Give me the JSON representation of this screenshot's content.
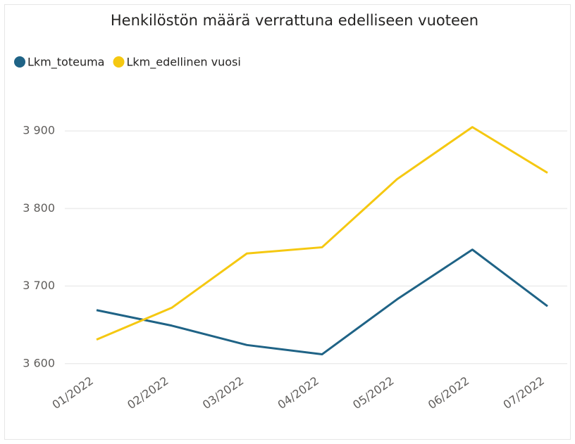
{
  "chart_data": {
    "type": "line",
    "title": "Henkilöstön määrä verrattuna edelliseen vuoteen",
    "categories": [
      "01/2022",
      "02/2022",
      "03/2022",
      "04/2022",
      "05/2022",
      "06/2022",
      "07/2022"
    ],
    "series": [
      {
        "name": "Lkm_toteuma",
        "color": "#1f6386",
        "values": [
          3669,
          3649,
          3624,
          3612,
          3683,
          3747,
          3674
        ]
      },
      {
        "name": "Lkm_edellinen vuosi",
        "color": "#f5c811",
        "values": [
          3631,
          3672,
          3742,
          3750,
          3838,
          3905,
          3846
        ]
      }
    ],
    "ylim": [
      3588,
      3950
    ],
    "yticks": [
      {
        "value": 3600,
        "label": "3 600"
      },
      {
        "value": 3700,
        "label": "3 700"
      },
      {
        "value": 3800,
        "label": "3 800"
      },
      {
        "value": 3900,
        "label": "3 900"
      }
    ],
    "grid": true,
    "legend": "top-left"
  }
}
